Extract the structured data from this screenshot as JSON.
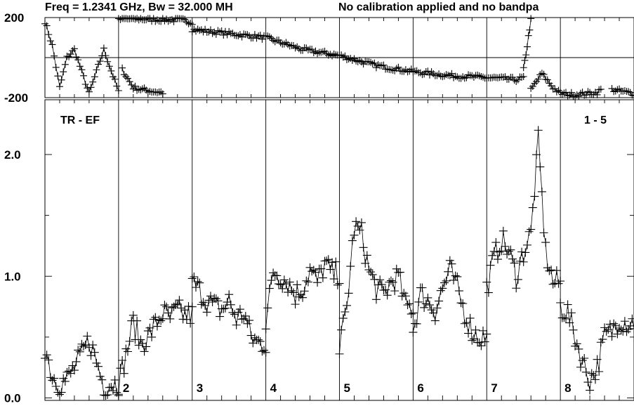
{
  "chart_data": {
    "type": "scatter",
    "title": "Freq = 1.2341 GHz, Bw = 32.000 MH",
    "subtitle": "No calibration applied and no bandpa",
    "upper_panel": {
      "yticks": [
        "200",
        "-200"
      ],
      "ylim": [
        -200,
        200
      ],
      "segments": [
        {
          "x": [
            0,
            0.1,
            0.2,
            0.3,
            0.4,
            0.6,
            0.8,
            1.0
          ],
          "y": [
            180,
            60,
            -150,
            0,
            40,
            -180,
            40,
            -170
          ]
        },
        {
          "x": [
            1.05,
            1.2,
            1.4,
            1.6
          ],
          "y": [
            -60,
            -150,
            -165,
            -175
          ]
        },
        {
          "x": [
            1.0,
            1.2,
            1.45,
            1.6,
            1.9,
            2.0
          ],
          "y": [
            190,
            195,
            190,
            190,
            185,
            175
          ]
        },
        {
          "x": [
            2.0,
            2.5,
            3.0,
            3.5,
            4.0,
            4.5,
            5.0,
            5.5,
            6.0,
            6.4,
            6.5
          ],
          "y": [
            140,
            120,
            100,
            40,
            10,
            -40,
            -70,
            -90,
            -100,
            -110,
            -100
          ]
        },
        {
          "x": [
            6.5,
            6.55,
            6.6
          ],
          "y": [
            -60,
            60,
            190
          ]
        },
        {
          "x": [
            6.6,
            6.75,
            6.9,
            7.0,
            7.2,
            7.5,
            7.55
          ],
          "y": [
            -160,
            -80,
            -150,
            -180,
            -185,
            -175,
            -160
          ]
        },
        {
          "x": [
            7.7,
            8.0,
            8.3,
            8.7,
            9.0
          ],
          "y": [
            -160,
            -180,
            -150,
            -60,
            30
          ]
        }
      ]
    },
    "lower_panel": {
      "label_left": "TR - EF",
      "label_right": "1 - 5",
      "yticks": [
        "0.0",
        "1.0",
        "2.0"
      ],
      "ylim": [
        -0.02,
        2.45
      ],
      "channel_labels": [
        "2",
        "3",
        "4",
        "5",
        "6",
        "7",
        "8"
      ],
      "series": [
        {
          "name": "1",
          "x": [
            0.0,
            0.1,
            0.2,
            0.3,
            0.4,
            0.5,
            0.6,
            0.7,
            0.8,
            0.9
          ],
          "y": [
            0.42,
            0.18,
            0.12,
            0.15,
            0.25,
            0.35,
            0.48,
            0.3,
            0.1,
            0.12
          ]
        },
        {
          "name": "2",
          "x": [
            1.0,
            1.1,
            1.2,
            1.3,
            1.4,
            1.5,
            1.6,
            1.7,
            1.8,
            1.9
          ],
          "y": [
            0.12,
            0.35,
            0.62,
            0.45,
            0.5,
            0.6,
            0.7,
            0.65,
            0.72,
            0.68
          ]
        },
        {
          "name": "3",
          "x": [
            2.0,
            2.1,
            2.2,
            2.3,
            2.4,
            2.5,
            2.6,
            2.7,
            2.8,
            2.9
          ],
          "y": [
            0.95,
            0.88,
            0.8,
            0.75,
            0.72,
            0.8,
            0.65,
            0.7,
            0.5,
            0.45
          ]
        },
        {
          "name": "4",
          "x": [
            3.0,
            3.1,
            3.2,
            3.3,
            3.4,
            3.5,
            3.6,
            3.7,
            3.8,
            3.9
          ],
          "y": [
            0.6,
            1.05,
            1.0,
            0.95,
            0.85,
            0.9,
            1.05,
            0.95,
            1.1,
            1.02
          ]
        },
        {
          "name": "5",
          "x": [
            4.0,
            4.1,
            4.2,
            4.3,
            4.4,
            4.5,
            4.6,
            4.7,
            4.8,
            4.9
          ],
          "y": [
            0.4,
            0.75,
            1.4,
            1.35,
            1.05,
            0.9,
            0.85,
            0.95,
            1.0,
            0.75
          ]
        },
        {
          "name": "6",
          "x": [
            5.0,
            5.1,
            5.2,
            5.3,
            5.4,
            5.5,
            5.6,
            5.7,
            5.8,
            5.9
          ],
          "y": [
            0.55,
            0.85,
            0.8,
            0.72,
            0.9,
            1.05,
            0.9,
            0.7,
            0.55,
            0.5
          ]
        },
        {
          "name": "7",
          "x": [
            6.0,
            6.1,
            6.2,
            6.3,
            6.4,
            6.5,
            6.6,
            6.7,
            6.8,
            6.9
          ],
          "y": [
            0.9,
            1.15,
            1.3,
            1.2,
            1.0,
            1.2,
            1.35,
            2.1,
            1.2,
            0.95
          ]
        },
        {
          "name": "8",
          "x": [
            7.0,
            7.1,
            7.2,
            7.3,
            7.4,
            7.5,
            7.6,
            7.7,
            7.8,
            7.9
          ],
          "y": [
            0.75,
            0.7,
            0.5,
            0.3,
            0.15,
            0.25,
            0.5,
            0.55,
            0.65,
            0.62
          ]
        }
      ]
    }
  }
}
